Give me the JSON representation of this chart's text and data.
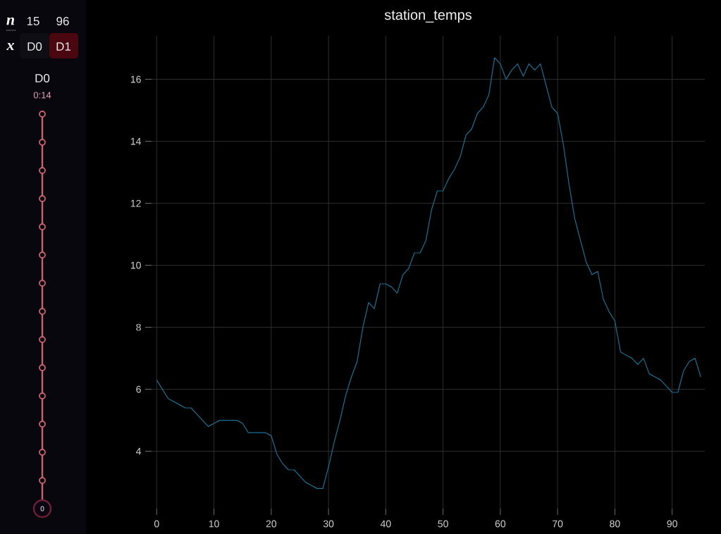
{
  "chart_data": [
    {
      "type": "other",
      "annotations": [
        "n",
        "15",
        "96",
        "x",
        "D0",
        "D1",
        "D0",
        "0:14",
        "0"
      ]
    },
    {
      "type": "line",
      "title": "station_temps",
      "x": [
        0,
        1,
        2,
        3,
        4,
        5,
        6,
        7,
        8,
        9,
        10,
        11,
        12,
        13,
        14,
        15,
        16,
        17,
        18,
        19,
        20,
        21,
        22,
        23,
        24,
        25,
        26,
        27,
        28,
        29,
        30,
        31,
        32,
        33,
        34,
        35,
        36,
        37,
        38,
        39,
        40,
        41,
        42,
        43,
        44,
        45,
        46,
        47,
        48,
        49,
        50,
        51,
        52,
        53,
        54,
        55,
        56,
        57,
        58,
        59,
        60,
        61,
        62,
        63,
        64,
        65,
        66,
        67,
        68,
        69,
        70,
        71,
        72,
        73,
        74,
        75,
        76,
        77,
        78,
        79,
        80,
        81,
        82,
        83,
        84,
        85,
        86,
        87,
        88,
        89,
        90,
        91,
        92,
        93,
        94,
        95
      ],
      "values": [
        6.3,
        6.0,
        5.7,
        5.6,
        5.5,
        5.4,
        5.4,
        5.2,
        5.0,
        4.8,
        4.9,
        5.0,
        5.0,
        5.0,
        5.0,
        4.9,
        4.6,
        4.6,
        4.6,
        4.6,
        4.5,
        3.9,
        3.6,
        3.4,
        3.4,
        3.2,
        3.0,
        2.9,
        2.8,
        2.8,
        3.5,
        4.3,
        5.0,
        5.8,
        6.4,
        6.9,
        8.0,
        8.8,
        8.6,
        9.4,
        9.4,
        9.3,
        9.1,
        9.7,
        9.9,
        10.4,
        10.4,
        10.8,
        11.8,
        12.4,
        12.4,
        12.8,
        13.1,
        13.5,
        14.2,
        14.4,
        14.9,
        15.1,
        15.5,
        16.7,
        16.5,
        16.0,
        16.3,
        16.5,
        16.1,
        16.5,
        16.3,
        16.5,
        15.8,
        15.1,
        14.9,
        13.9,
        12.6,
        11.5,
        10.8,
        10.1,
        9.7,
        9.8,
        8.9,
        8.5,
        8.2,
        7.2,
        7.1,
        7.0,
        6.8,
        7.0,
        6.5,
        6.4,
        6.3,
        6.1,
        5.9,
        5.9,
        6.6,
        6.9,
        7.0,
        6.4
      ],
      "color": "#1b6f92",
      "xlim": [
        -0.9,
        95.7
      ],
      "ylim": [
        2.15,
        17.4
      ],
      "xticks": [
        0,
        10,
        20,
        30,
        40,
        50,
        60,
        70,
        80,
        90
      ],
      "yticks": [
        4,
        6,
        8,
        10,
        12,
        14,
        16
      ],
      "grid": true
    }
  ]
}
